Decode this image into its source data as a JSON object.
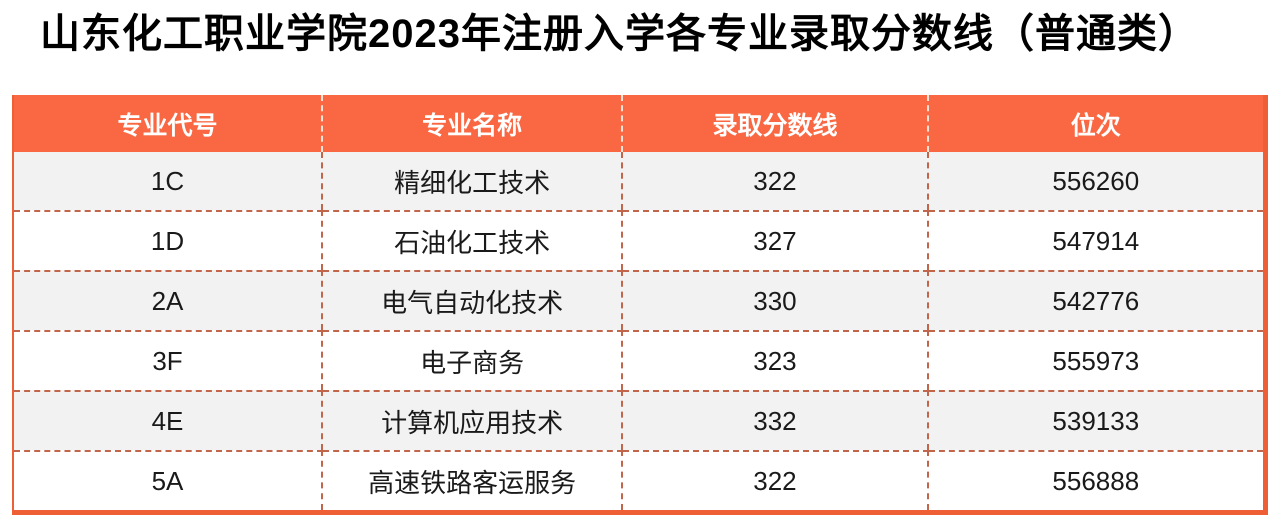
{
  "page": {
    "title": "山东化工职业学院2023年注册入学各专业录取分数线（普通类）"
  },
  "table": {
    "columns": [
      {
        "key": "code",
        "label": "专业代号"
      },
      {
        "key": "name",
        "label": "专业名称"
      },
      {
        "key": "score",
        "label": "录取分数线"
      },
      {
        "key": "rank",
        "label": "位次"
      }
    ],
    "rows": [
      {
        "code": "1C",
        "name": "精细化工技术",
        "score": "322",
        "rank": "556260"
      },
      {
        "code": "1D",
        "name": "石油化工技术",
        "score": "327",
        "rank": "547914"
      },
      {
        "code": "2A",
        "name": "电气自动化技术",
        "score": "330",
        "rank": "542776"
      },
      {
        "code": "3F",
        "name": "电子商务",
        "score": "323",
        "rank": "555973"
      },
      {
        "code": "4E",
        "name": "计算机应用技术",
        "score": "332",
        "rank": "539133"
      },
      {
        "code": "5A",
        "name": "高速铁路客运服务",
        "score": "322",
        "rank": "556888"
      }
    ]
  },
  "colors": {
    "header_bg": "#F96843",
    "header_text": "#FFFFFF",
    "outer_border": "#EE5F36",
    "body_dashed_border": "#C2664B",
    "header_dashed_border": "#F6E3D8",
    "row_alt_bg": "#F2F2F2",
    "row_bg": "#FFFFFF",
    "body_text": "#1A1A1A",
    "title_text": "#000000"
  }
}
